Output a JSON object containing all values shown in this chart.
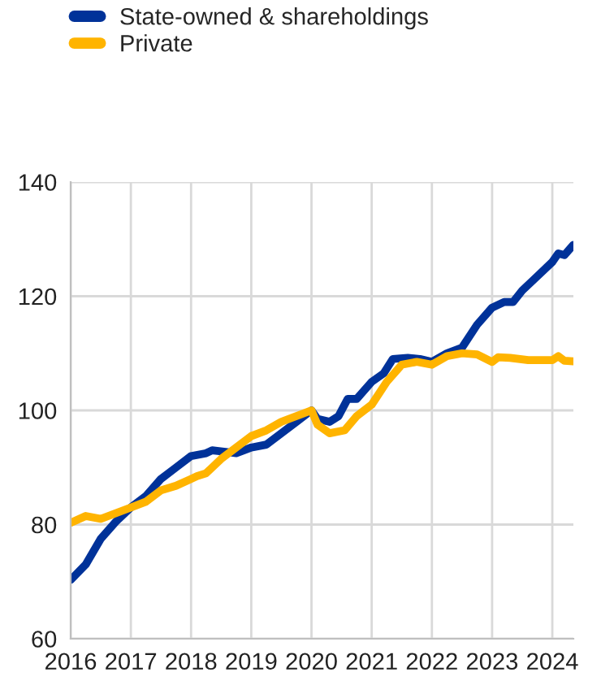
{
  "chart_data": {
    "type": "line",
    "series": [
      {
        "name": "State-owned & shareholdings",
        "color": "#003299",
        "x": [
          2016.0,
          2016.25,
          2016.5,
          2016.75,
          2017.0,
          2017.25,
          2017.5,
          2017.75,
          2018.0,
          2018.25,
          2018.35,
          2018.6,
          2018.75,
          2019.0,
          2019.25,
          2019.5,
          2019.75,
          2020.0,
          2020.1,
          2020.3,
          2020.45,
          2020.6,
          2020.75,
          2021.0,
          2021.2,
          2021.35,
          2021.6,
          2021.8,
          2022.0,
          2022.25,
          2022.5,
          2022.75,
          2023.0,
          2023.2,
          2023.35,
          2023.5,
          2023.75,
          2024.0,
          2024.1,
          2024.2,
          2024.35
        ],
        "values": [
          70.3,
          73,
          77.5,
          80.5,
          83,
          85,
          88,
          90,
          92,
          92.5,
          93,
          92.7,
          92.5,
          93.5,
          94,
          96,
          98,
          100,
          98.5,
          98,
          99,
          102,
          102,
          105,
          106.5,
          109,
          109.2,
          109,
          108.5,
          110,
          111,
          115,
          118,
          119,
          119,
          121,
          123.5,
          126,
          127.5,
          127.2,
          129
        ]
      },
      {
        "name": "Private",
        "color": "#ffb400",
        "x": [
          2016.0,
          2016.25,
          2016.5,
          2016.75,
          2017.0,
          2017.25,
          2017.5,
          2017.75,
          2018.0,
          2018.1,
          2018.25,
          2018.5,
          2018.75,
          2019.0,
          2019.25,
          2019.5,
          2019.75,
          2020.0,
          2020.1,
          2020.3,
          2020.55,
          2020.75,
          2021.0,
          2021.25,
          2021.5,
          2021.75,
          2022.0,
          2022.25,
          2022.5,
          2022.75,
          2023.0,
          2023.1,
          2023.3,
          2023.6,
          2023.85,
          2024.0,
          2024.1,
          2024.2,
          2024.35
        ],
        "values": [
          80.3,
          81.5,
          81,
          82,
          83,
          84,
          86,
          86.8,
          88,
          88.5,
          89,
          91.5,
          93.5,
          95.5,
          96.5,
          98,
          99,
          100,
          97.5,
          96,
          96.5,
          99,
          101,
          105,
          108,
          108.5,
          108,
          109.5,
          110,
          109.8,
          108.5,
          109.3,
          109.2,
          108.8,
          108.8,
          108.8,
          109.5,
          108.7,
          108.6
        ]
      }
    ],
    "xlim": [
      2016,
      2024.35
    ],
    "xticks": [
      2016,
      2017,
      2018,
      2019,
      2020,
      2021,
      2022,
      2023,
      2024
    ],
    "ylim": [
      60,
      140
    ],
    "yticks": [
      60,
      80,
      100,
      120,
      140
    ],
    "grid": true,
    "legend": "top left",
    "line_style": "solid",
    "marker": "none"
  }
}
